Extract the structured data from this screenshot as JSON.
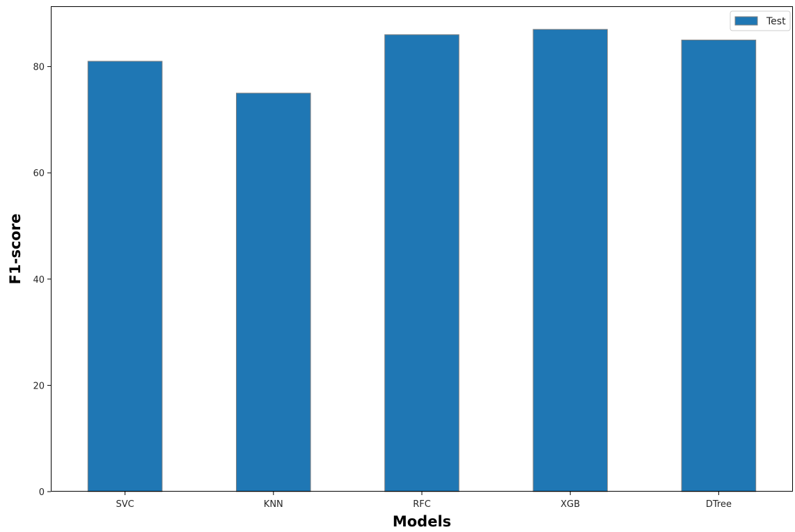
{
  "chart_data": {
    "type": "bar",
    "categories": [
      "SVC",
      "KNN",
      "RFC",
      "XGB",
      "DTree"
    ],
    "series": [
      {
        "name": "Test",
        "values": [
          81,
          75,
          86,
          87,
          85
        ],
        "color": "#1f77b4"
      }
    ],
    "xlabel": "Models",
    "ylabel": "F1-score",
    "ylim": [
      0,
      91.35
    ],
    "yticks": [
      0,
      20,
      40,
      60,
      80
    ],
    "grid": false,
    "legend_position": "upper right",
    "bar_edge_color": "#808080"
  }
}
